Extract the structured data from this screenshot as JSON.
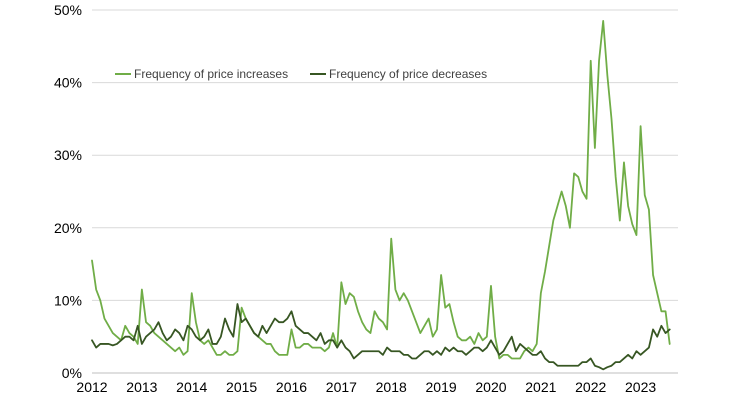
{
  "chart_data": {
    "type": "line",
    "x_start": "2012-01",
    "x_frequency": "monthly",
    "xlim": [
      2012.0,
      2023.75
    ],
    "ylim": [
      0,
      50
    ],
    "y_ticks": [
      0,
      10,
      20,
      30,
      40,
      50
    ],
    "y_tick_labels": [
      "0%",
      "10%",
      "20%",
      "30%",
      "40%",
      "50%"
    ],
    "x_ticks": [
      2012,
      2013,
      2014,
      2015,
      2016,
      2017,
      2018,
      2019,
      2020,
      2021,
      2022,
      2023
    ],
    "x_tick_labels": [
      "2012",
      "2013",
      "2014",
      "2015",
      "2016",
      "2017",
      "2018",
      "2019",
      "2020",
      "2021",
      "2022",
      "2023"
    ],
    "grid": "horizontal",
    "legend_position": "top-left",
    "series": [
      {
        "name": "Frequency of price increases",
        "color": "#70ad47",
        "values": [
          15.5,
          11.5,
          10.0,
          7.5,
          6.5,
          5.5,
          5.0,
          4.5,
          6.5,
          5.5,
          5.0,
          4.0,
          11.5,
          7.0,
          6.5,
          5.5,
          5.0,
          4.5,
          4.0,
          3.5,
          3.0,
          3.5,
          2.5,
          3.0,
          11.0,
          7.0,
          4.5,
          4.0,
          4.5,
          3.5,
          2.5,
          2.5,
          3.0,
          2.5,
          2.5,
          3.0,
          9.0,
          7.5,
          6.5,
          5.5,
          5.0,
          4.5,
          4.0,
          4.0,
          3.0,
          2.5,
          2.5,
          2.5,
          6.0,
          3.5,
          3.5,
          4.0,
          4.0,
          3.5,
          3.5,
          3.5,
          3.0,
          3.5,
          5.5,
          3.5,
          12.5,
          9.5,
          11.0,
          10.5,
          8.5,
          7.0,
          6.0,
          5.5,
          8.5,
          7.5,
          7.0,
          6.0,
          18.5,
          11.5,
          10.0,
          11.0,
          10.0,
          8.5,
          7.0,
          5.5,
          6.5,
          7.5,
          5.0,
          6.0,
          13.5,
          9.0,
          9.5,
          7.0,
          5.0,
          4.5,
          4.5,
          5.0,
          4.0,
          5.5,
          4.5,
          5.0,
          12.0,
          5.0,
          2.0,
          2.5,
          2.5,
          2.0,
          2.0,
          2.0,
          3.0,
          3.5,
          3.0,
          4.0,
          11.0,
          14.0,
          17.5,
          21.0,
          23.0,
          25.0,
          23.0,
          20.0,
          27.5,
          27.0,
          25.0,
          24.0,
          43.0,
          31.0,
          43.0,
          48.5,
          41.0,
          35.0,
          27.0,
          21.0,
          29.0,
          23.0,
          20.5,
          19.0,
          34.0,
          24.5,
          22.5,
          13.5,
          11.0,
          8.5,
          8.5,
          4.0
        ]
      },
      {
        "name": "Frequency of price decreases",
        "color": "#375623",
        "values": [
          4.5,
          3.5,
          4.0,
          4.0,
          4.0,
          3.8,
          4.0,
          4.5,
          5.0,
          5.0,
          4.5,
          6.5,
          4.0,
          5.0,
          5.5,
          6.0,
          7.0,
          5.5,
          4.5,
          5.0,
          6.0,
          5.5,
          4.5,
          6.5,
          6.0,
          5.0,
          4.5,
          5.0,
          6.0,
          4.0,
          4.0,
          5.0,
          7.5,
          6.0,
          5.0,
          9.5,
          7.0,
          7.5,
          6.5,
          5.5,
          5.0,
          6.5,
          5.5,
          6.5,
          7.5,
          7.0,
          7.0,
          7.5,
          8.5,
          6.5,
          6.0,
          5.5,
          5.5,
          5.0,
          4.5,
          5.5,
          4.0,
          4.5,
          4.5,
          3.5,
          4.5,
          3.5,
          3.0,
          2.0,
          2.5,
          3.0,
          3.0,
          3.0,
          3.0,
          3.0,
          2.5,
          3.5,
          3.0,
          3.0,
          3.0,
          2.5,
          2.5,
          2.0,
          2.0,
          2.5,
          3.0,
          3.0,
          2.5,
          3.0,
          2.5,
          3.5,
          3.0,
          3.5,
          3.0,
          3.0,
          2.5,
          3.0,
          3.5,
          3.5,
          3.0,
          3.5,
          4.5,
          3.5,
          2.5,
          3.0,
          4.0,
          5.0,
          3.0,
          4.0,
          3.5,
          3.0,
          2.5,
          2.5,
          3.0,
          2.0,
          1.5,
          1.5,
          1.0,
          1.0,
          1.0,
          1.0,
          1.0,
          1.0,
          1.5,
          1.5,
          2.0,
          1.0,
          0.8,
          0.5,
          0.8,
          1.0,
          1.5,
          1.5,
          2.0,
          2.5,
          2.0,
          3.0,
          2.5,
          3.0,
          3.5,
          6.0,
          5.0,
          6.5,
          5.5,
          6.0
        ]
      }
    ]
  }
}
